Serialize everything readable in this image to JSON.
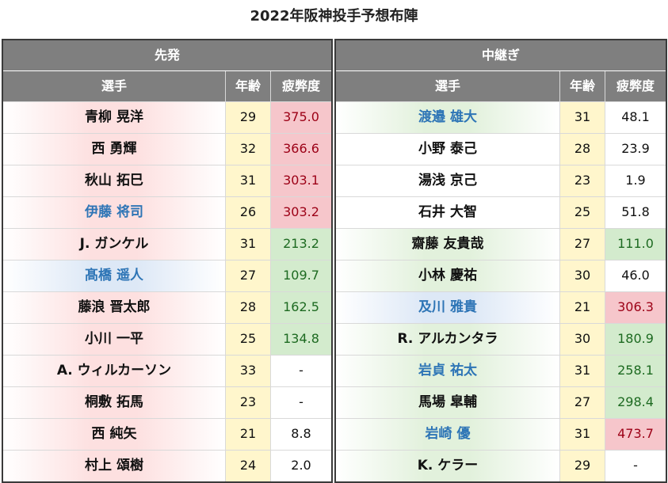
{
  "title": "2022年阪神投手予想布陣",
  "colors": {
    "header_bg": "#7f7f7f",
    "age_bg": "#fff6cc",
    "fatigue_red_bg": "#f6c6cb",
    "fatigue_red_text": "#9c0016",
    "fatigue_green_bg": "#d3ebcd",
    "fatigue_green_text": "#1d6a21",
    "name_blue_text": "#2e75b6",
    "name_red_tint": "#fde0e0",
    "name_green_tint": "#e2f1dc",
    "name_blue_tint": "#dde8f6"
  },
  "left": {
    "section": "先発",
    "headers": {
      "name": "選手",
      "age": "年齢",
      "fatigue": "疲弊度"
    },
    "rows": [
      {
        "name": "青柳 晃洋",
        "age": "29",
        "fatigue": "375.0",
        "name_tint": "red",
        "name_color": "black",
        "fatigue_color": "red"
      },
      {
        "name": "西 勇輝",
        "age": "32",
        "fatigue": "366.6",
        "name_tint": "red",
        "name_color": "black",
        "fatigue_color": "red"
      },
      {
        "name": "秋山 拓巳",
        "age": "31",
        "fatigue": "303.1",
        "name_tint": "red",
        "name_color": "black",
        "fatigue_color": "red"
      },
      {
        "name": "伊藤 将司",
        "age": "26",
        "fatigue": "303.2",
        "name_tint": "red",
        "name_color": "blue",
        "fatigue_color": "red"
      },
      {
        "name": "J. ガンケル",
        "age": "31",
        "fatigue": "213.2",
        "name_tint": "red",
        "name_color": "black",
        "fatigue_color": "green"
      },
      {
        "name": "髙橋 遥人",
        "age": "27",
        "fatigue": "109.7",
        "name_tint": "blue",
        "name_color": "blue",
        "fatigue_color": "green"
      },
      {
        "name": "藤浪 晋太郎",
        "age": "28",
        "fatigue": "162.5",
        "name_tint": "red",
        "name_color": "black",
        "fatigue_color": "green"
      },
      {
        "name": "小川 一平",
        "age": "25",
        "fatigue": "134.8",
        "name_tint": "red",
        "name_color": "black",
        "fatigue_color": "green"
      },
      {
        "name": "A. ウィルカーソン",
        "age": "33",
        "fatigue": "-",
        "name_tint": "red",
        "name_color": "black",
        "fatigue_color": "none"
      },
      {
        "name": "桐敷 拓馬",
        "age": "23",
        "fatigue": "-",
        "name_tint": "red",
        "name_color": "black",
        "fatigue_color": "none"
      },
      {
        "name": "西 純矢",
        "age": "21",
        "fatigue": "8.8",
        "name_tint": "red",
        "name_color": "black",
        "fatigue_color": "none"
      },
      {
        "name": "村上 頌樹",
        "age": "24",
        "fatigue": "2.0",
        "name_tint": "red",
        "name_color": "black",
        "fatigue_color": "none"
      }
    ]
  },
  "right": {
    "section": "中継ぎ",
    "headers": {
      "name": "選手",
      "age": "年齢",
      "fatigue": "疲弊度"
    },
    "rows": [
      {
        "name": "渡邉 雄大",
        "age": "31",
        "fatigue": "48.1",
        "name_tint": "green",
        "name_color": "blue",
        "fatigue_color": "none"
      },
      {
        "name": "小野 泰己",
        "age": "28",
        "fatigue": "23.9",
        "name_tint": "plain",
        "name_color": "black",
        "fatigue_color": "none"
      },
      {
        "name": "湯浅 京己",
        "age": "23",
        "fatigue": "1.9",
        "name_tint": "plain",
        "name_color": "black",
        "fatigue_color": "none"
      },
      {
        "name": "石井 大智",
        "age": "25",
        "fatigue": "51.8",
        "name_tint": "plain",
        "name_color": "black",
        "fatigue_color": "none"
      },
      {
        "name": "齋藤 友貴哉",
        "age": "27",
        "fatigue": "111.0",
        "name_tint": "green",
        "name_color": "black",
        "fatigue_color": "green"
      },
      {
        "name": "小林 慶祐",
        "age": "30",
        "fatigue": "46.0",
        "name_tint": "green",
        "name_color": "black",
        "fatigue_color": "none"
      },
      {
        "name": "及川 雅貴",
        "age": "21",
        "fatigue": "306.3",
        "name_tint": "blue",
        "name_color": "blue",
        "fatigue_color": "red"
      },
      {
        "name": "R. アルカンタラ",
        "age": "30",
        "fatigue": "180.9",
        "name_tint": "green",
        "name_color": "black",
        "fatigue_color": "green"
      },
      {
        "name": "岩貞 祐太",
        "age": "31",
        "fatigue": "258.1",
        "name_tint": "green",
        "name_color": "blue",
        "fatigue_color": "green"
      },
      {
        "name": "馬場 皐輔",
        "age": "27",
        "fatigue": "298.4",
        "name_tint": "green",
        "name_color": "black",
        "fatigue_color": "green"
      },
      {
        "name": "岩崎 優",
        "age": "31",
        "fatigue": "473.7",
        "name_tint": "green",
        "name_color": "blue",
        "fatigue_color": "red"
      },
      {
        "name": "K. ケラー",
        "age": "29",
        "fatigue": "-",
        "name_tint": "green",
        "name_color": "black",
        "fatigue_color": "none"
      }
    ]
  }
}
